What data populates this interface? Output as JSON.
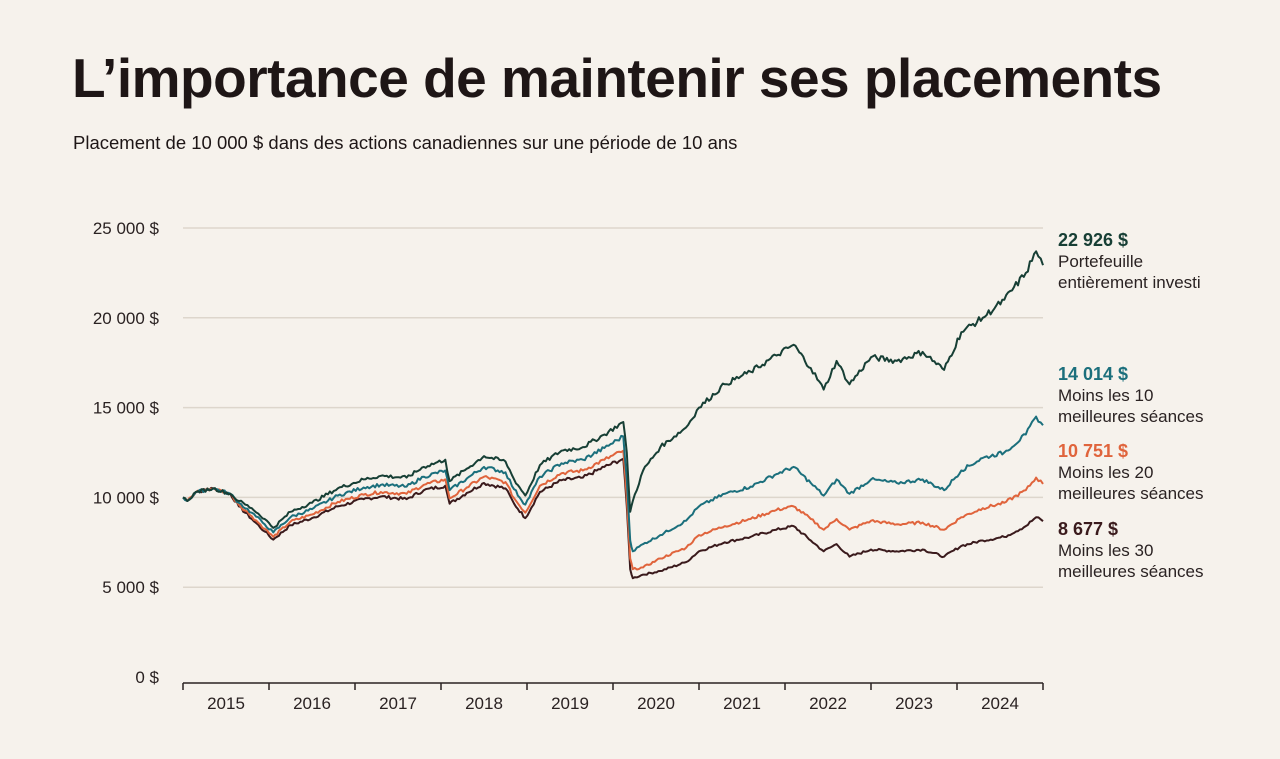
{
  "title": "L’importance de maintenir ses placements",
  "subtitle": "Placement de 10 000 $ dans des actions canadiennes sur une période de 10 ans",
  "chart_data": {
    "type": "line",
    "title": "L’importance de maintenir ses placements",
    "subtitle": "Placement de 10 000 $ dans des actions canadiennes sur une période de 10 ans",
    "xlim": [
      2015,
      2025
    ],
    "ylim": [
      0,
      25000
    ],
    "grid": true,
    "x_tick_labels": [
      "2015",
      "2016",
      "2017",
      "2018",
      "2019",
      "2020",
      "2021",
      "2022",
      "2023",
      "2024"
    ],
    "y_ticks": [
      0,
      5000,
      10000,
      15000,
      20000,
      25000
    ],
    "y_tick_labels": [
      "0 $",
      "5 000 $",
      "10 000 $",
      "15 000 $",
      "20 000 $",
      "25 000 $"
    ],
    "x": [
      2015.0,
      2015.05,
      2015.15,
      2015.35,
      2015.55,
      2015.65,
      2015.8,
      2015.95,
      2016.05,
      2016.25,
      2016.5,
      2016.8,
      2017.1,
      2017.3,
      2017.6,
      2017.8,
      2018.05,
      2018.1,
      2018.3,
      2018.5,
      2018.75,
      2018.85,
      2018.98,
      2019.15,
      2019.4,
      2019.65,
      2019.9,
      2020.12,
      2020.16,
      2020.2,
      2020.23,
      2020.35,
      2020.55,
      2020.85,
      2021.0,
      2021.3,
      2021.6,
      2021.9,
      2022.1,
      2022.3,
      2022.45,
      2022.6,
      2022.75,
      2023.0,
      2023.3,
      2023.6,
      2023.85,
      2024.05,
      2024.3,
      2024.55,
      2024.8,
      2024.92,
      2025.0
    ],
    "series": [
      {
        "name": "Portefeuille entièrement investi",
        "final_label": "22 926 $",
        "color": "#173f35",
        "values": [
          10000,
          9800,
          10300,
          10500,
          10200,
          9800,
          9400,
          8800,
          8300,
          9200,
          9700,
          10500,
          11000,
          11200,
          11100,
          11700,
          12100,
          10900,
          11600,
          12300,
          12000,
          11000,
          10100,
          11800,
          12600,
          12800,
          13500,
          14200,
          12500,
          9200,
          9800,
          11500,
          12800,
          13900,
          15000,
          16300,
          17000,
          17900,
          18500,
          17200,
          16000,
          17600,
          16300,
          17800,
          17600,
          18100,
          17100,
          19200,
          20000,
          21000,
          22500,
          23700,
          22926
        ]
      },
      {
        "name": "Moins les 10 meilleures séances",
        "final_label": "14 014 $",
        "color": "#1b6f7c",
        "values": [
          10000,
          9800,
          10300,
          10500,
          10200,
          9700,
          9150,
          8500,
          8050,
          8900,
          9350,
          10100,
          10550,
          10700,
          10600,
          11150,
          11500,
          10400,
          11050,
          11700,
          11400,
          10450,
          9600,
          11150,
          11900,
          12100,
          12750,
          13400,
          11000,
          7600,
          7000,
          7400,
          7900,
          8700,
          9500,
          10200,
          10600,
          11300,
          11700,
          10800,
          10100,
          11000,
          10200,
          11000,
          10800,
          11000,
          10400,
          11500,
          12200,
          12500,
          13500,
          14500,
          14014
        ]
      },
      {
        "name": "Moins les 20 meilleures séances",
        "final_label": "10 751 $",
        "color": "#e0643c",
        "values": [
          10000,
          9800,
          10300,
          10500,
          10200,
          9600,
          8950,
          8250,
          7800,
          8650,
          9050,
          9750,
          10150,
          10300,
          10200,
          10700,
          11000,
          9950,
          10550,
          11150,
          10850,
          9950,
          9150,
          10650,
          11350,
          11500,
          12100,
          12600,
          10000,
          6600,
          6000,
          6100,
          6600,
          7200,
          7900,
          8400,
          8800,
          9300,
          9500,
          8800,
          8200,
          8800,
          8200,
          8700,
          8500,
          8600,
          8200,
          8900,
          9400,
          9700,
          10400,
          11100,
          10751
        ]
      },
      {
        "name": "Moins les 30 meilleures séances",
        "final_label": "8 677 $",
        "color": "#3a1a1c",
        "values": [
          10000,
          9800,
          10300,
          10500,
          10200,
          9500,
          8800,
          8100,
          7650,
          8450,
          8850,
          9500,
          9900,
          10050,
          9900,
          10400,
          10650,
          9650,
          10250,
          10800,
          10500,
          9650,
          8850,
          10300,
          10950,
          11100,
          11700,
          12150,
          9500,
          6000,
          5500,
          5700,
          5900,
          6400,
          7000,
          7500,
          7800,
          8200,
          8400,
          7600,
          7000,
          7400,
          6700,
          7100,
          7000,
          7100,
          6700,
          7300,
          7600,
          7800,
          8400,
          8900,
          8677
        ]
      }
    ],
    "end_labels": [
      {
        "value": "22 926 $",
        "line1": "Portefeuille",
        "line2": "entièrement investi"
      },
      {
        "value": "14 014 $",
        "line1": "Moins les 10",
        "line2": "meilleures séances"
      },
      {
        "value": "10 751 $",
        "line1": "Moins les 20",
        "line2": "meilleures séances"
      },
      {
        "value": "8 677 $",
        "line1": "Moins les 30",
        "line2": "meilleures séances"
      }
    ]
  }
}
